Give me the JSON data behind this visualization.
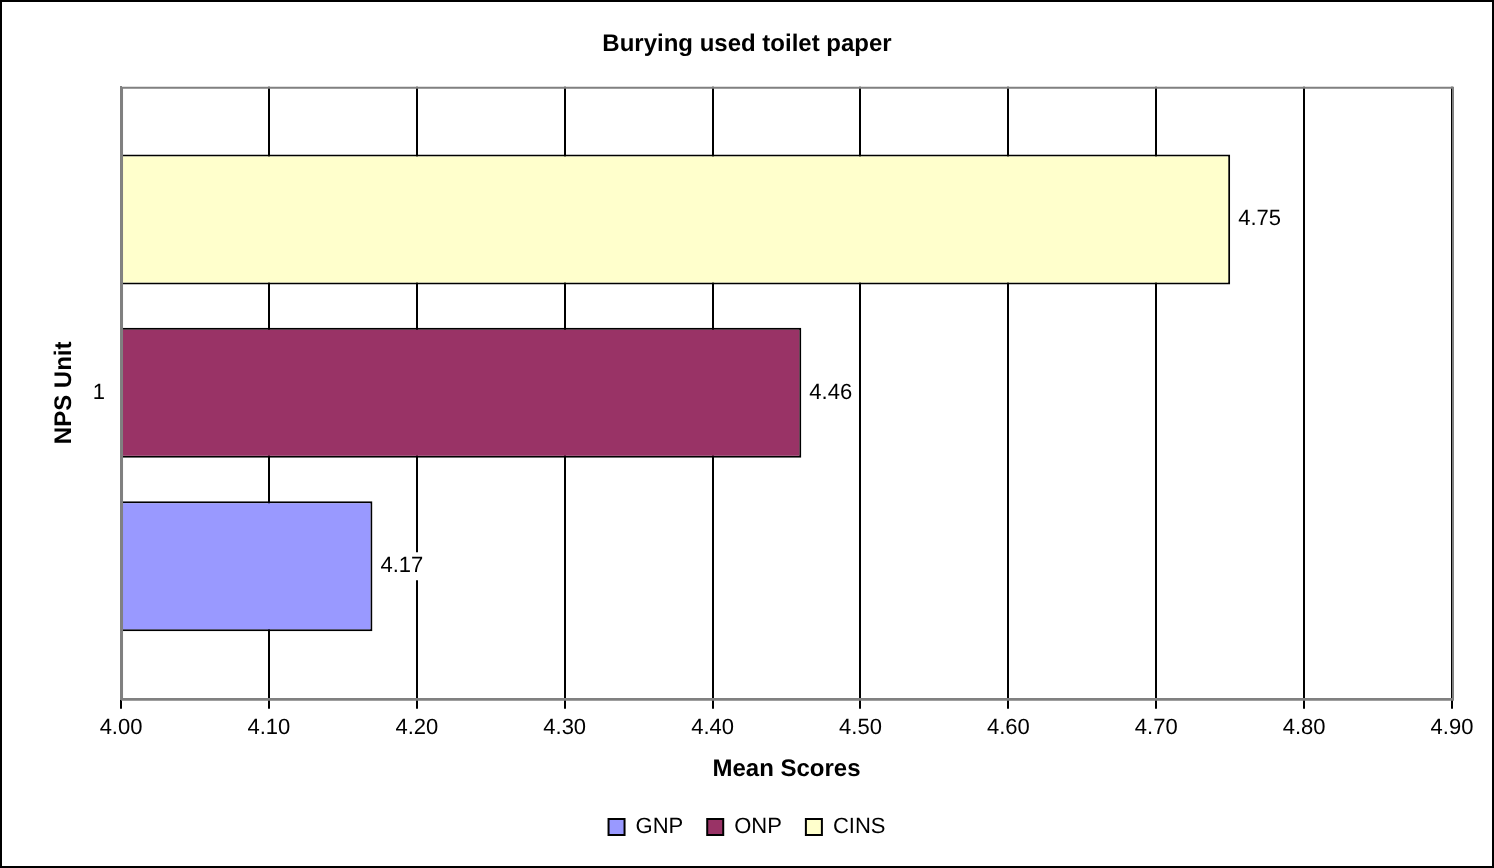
{
  "chart_data": {
    "type": "bar",
    "orientation": "horizontal",
    "title": "Burying used toilet paper",
    "xlabel": "Mean Scores",
    "ylabel": "NPS Unit",
    "categories": [
      "1"
    ],
    "series": [
      {
        "name": "GNP",
        "color": "#9999ff",
        "values": [
          4.17
        ]
      },
      {
        "name": "ONP",
        "color": "#993366",
        "values": [
          4.46
        ]
      },
      {
        "name": "CINS",
        "color": "#ffffcc",
        "values": [
          4.75
        ]
      }
    ],
    "xlim": [
      4,
      4.9
    ],
    "xticks": [
      {
        "value": 4,
        "label": "4.00"
      },
      {
        "value": 4.1,
        "label": "4.10"
      },
      {
        "value": 4.2,
        "label": "4.20"
      },
      {
        "value": 4.3,
        "label": "4.30"
      },
      {
        "value": 4.4,
        "label": "4.40"
      },
      {
        "value": 4.5,
        "label": "4.50"
      },
      {
        "value": 4.6,
        "label": "4.60"
      },
      {
        "value": 4.7,
        "label": "4.70"
      },
      {
        "value": 4.8,
        "label": "4.80"
      },
      {
        "value": 4.9,
        "label": "4.90"
      }
    ],
    "grid": "x",
    "legend": "bottom",
    "data_labels": true
  }
}
